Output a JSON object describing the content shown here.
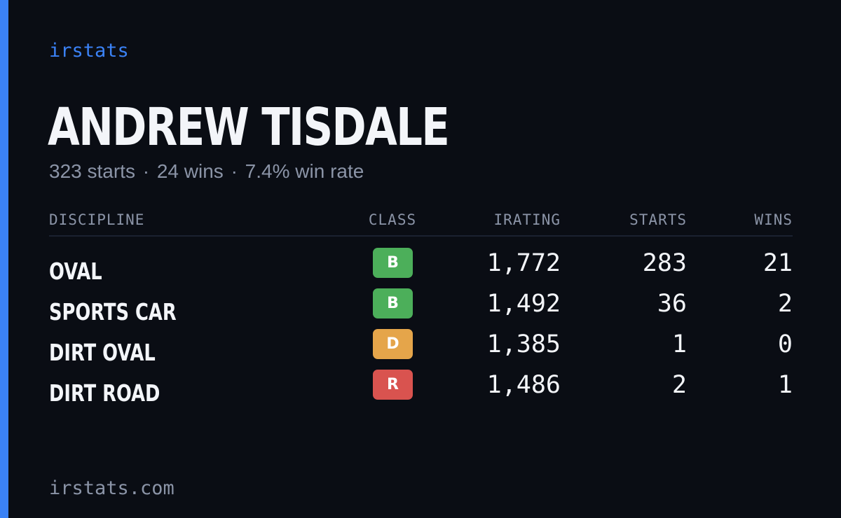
{
  "brand": "irstats",
  "driver": {
    "name": "ANDREW TISDALE",
    "starts": "323 starts",
    "wins": "24 wins",
    "win_rate": "7.4% win rate",
    "separator": "·"
  },
  "table": {
    "headers": {
      "discipline": "DISCIPLINE",
      "class": "CLASS",
      "irating": "IRATING",
      "starts": "STARTS",
      "wins": "WINS"
    },
    "rows": [
      {
        "discipline": "OVAL",
        "class": "B",
        "class_color": "#4caf5a",
        "irating": "1,772",
        "starts": "283",
        "wins": "21"
      },
      {
        "discipline": "SPORTS CAR",
        "class": "B",
        "class_color": "#4caf5a",
        "irating": "1,492",
        "starts": "36",
        "wins": "2"
      },
      {
        "discipline": "DIRT OVAL",
        "class": "D",
        "class_color": "#e5a54a",
        "irating": "1,385",
        "starts": "1",
        "wins": "0"
      },
      {
        "discipline": "DIRT ROAD",
        "class": "R",
        "class_color": "#d9534f",
        "irating": "1,486",
        "starts": "2",
        "wins": "1"
      }
    ]
  },
  "footer": "irstats.com",
  "colors": {
    "accent": "#3b82f6",
    "background": "#0a0d14",
    "muted_text": "#8b94a7"
  }
}
